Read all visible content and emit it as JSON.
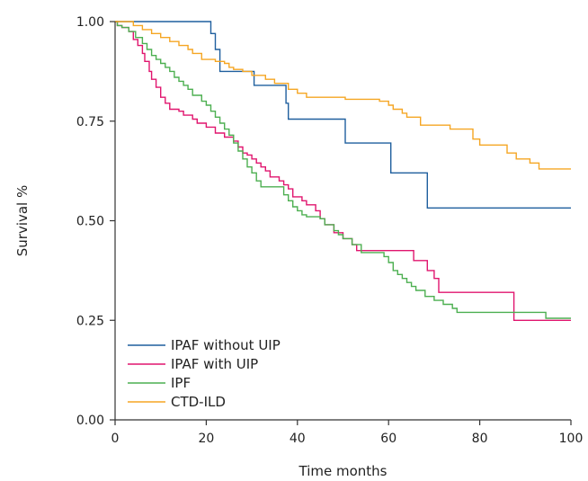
{
  "chart_data": {
    "type": "line",
    "step": true,
    "xlabel": "Time months",
    "ylabel": "Survival %",
    "xlim": [
      0,
      100
    ],
    "ylim": [
      0,
      1
    ],
    "xticks": [
      "0",
      "20",
      "40",
      "60",
      "80",
      "100"
    ],
    "yticks": [
      "0.00",
      "0.25",
      "0.50",
      "0.75",
      "1.00"
    ],
    "grid": false,
    "legend_position": "bottom-left",
    "series": [
      {
        "name": "IPAF without UIP",
        "color": "#1f5f9e",
        "points": [
          [
            0,
            1.0
          ],
          [
            20,
            1.0
          ],
          [
            21,
            0.97
          ],
          [
            22,
            0.93
          ],
          [
            23,
            0.875
          ],
          [
            30,
            0.875
          ],
          [
            30.5,
            0.84
          ],
          [
            37,
            0.84
          ],
          [
            37.5,
            0.795
          ],
          [
            38,
            0.755
          ],
          [
            50,
            0.755
          ],
          [
            50.5,
            0.695
          ],
          [
            60,
            0.695
          ],
          [
            60.5,
            0.62
          ],
          [
            68,
            0.62
          ],
          [
            68.5,
            0.532
          ],
          [
            100,
            0.532
          ]
        ]
      },
      {
        "name": "IPAF with UIP",
        "color": "#e0156e",
        "points": [
          [
            0,
            1.0
          ],
          [
            0.5,
            0.99
          ],
          [
            1.5,
            0.985
          ],
          [
            3,
            0.975
          ],
          [
            4,
            0.955
          ],
          [
            5,
            0.94
          ],
          [
            6,
            0.92
          ],
          [
            6.5,
            0.9
          ],
          [
            7.5,
            0.875
          ],
          [
            8,
            0.855
          ],
          [
            9,
            0.835
          ],
          [
            10,
            0.81
          ],
          [
            11,
            0.795
          ],
          [
            12,
            0.78
          ],
          [
            14,
            0.775
          ],
          [
            15,
            0.765
          ],
          [
            17,
            0.755
          ],
          [
            18,
            0.745
          ],
          [
            20,
            0.735
          ],
          [
            22,
            0.72
          ],
          [
            24,
            0.71
          ],
          [
            26,
            0.7
          ],
          [
            27,
            0.685
          ],
          [
            28,
            0.67
          ],
          [
            29,
            0.665
          ],
          [
            30,
            0.655
          ],
          [
            31,
            0.645
          ],
          [
            32,
            0.635
          ],
          [
            33,
            0.625
          ],
          [
            34,
            0.61
          ],
          [
            36,
            0.6
          ],
          [
            37,
            0.59
          ],
          [
            38,
            0.58
          ],
          [
            39,
            0.56
          ],
          [
            41,
            0.55
          ],
          [
            42,
            0.54
          ],
          [
            44,
            0.525
          ],
          [
            45,
            0.505
          ],
          [
            46,
            0.49
          ],
          [
            48,
            0.47
          ],
          [
            50,
            0.455
          ],
          [
            52,
            0.44
          ],
          [
            53,
            0.425
          ],
          [
            55,
            0.425
          ],
          [
            58,
            0.425
          ],
          [
            59,
            0.425
          ],
          [
            65,
            0.425
          ],
          [
            65.5,
            0.4
          ],
          [
            68,
            0.4
          ],
          [
            68.5,
            0.375
          ],
          [
            70,
            0.355
          ],
          [
            71,
            0.32
          ],
          [
            87,
            0.32
          ],
          [
            87.5,
            0.25
          ],
          [
            100,
            0.25
          ]
        ]
      },
      {
        "name": "IPF",
        "color": "#4caf50",
        "points": [
          [
            0,
            1.0
          ],
          [
            0.5,
            0.99
          ],
          [
            1.5,
            0.985
          ],
          [
            3,
            0.975
          ],
          [
            4.5,
            0.96
          ],
          [
            6,
            0.945
          ],
          [
            7,
            0.93
          ],
          [
            8,
            0.915
          ],
          [
            9,
            0.905
          ],
          [
            10,
            0.895
          ],
          [
            11,
            0.885
          ],
          [
            12,
            0.875
          ],
          [
            13,
            0.86
          ],
          [
            14,
            0.85
          ],
          [
            15,
            0.84
          ],
          [
            16,
            0.83
          ],
          [
            17,
            0.815
          ],
          [
            19,
            0.8
          ],
          [
            20,
            0.79
          ],
          [
            21,
            0.775
          ],
          [
            22,
            0.76
          ],
          [
            23,
            0.745
          ],
          [
            24,
            0.73
          ],
          [
            25,
            0.715
          ],
          [
            26,
            0.695
          ],
          [
            27,
            0.675
          ],
          [
            28,
            0.655
          ],
          [
            29,
            0.635
          ],
          [
            30,
            0.62
          ],
          [
            31,
            0.6
          ],
          [
            32,
            0.585
          ],
          [
            36,
            0.585
          ],
          [
            37,
            0.565
          ],
          [
            38,
            0.55
          ],
          [
            39,
            0.535
          ],
          [
            40,
            0.525
          ],
          [
            41,
            0.515
          ],
          [
            42,
            0.51
          ],
          [
            45,
            0.505
          ],
          [
            46,
            0.49
          ],
          [
            48,
            0.475
          ],
          [
            49,
            0.465
          ],
          [
            50,
            0.455
          ],
          [
            52,
            0.44
          ],
          [
            54,
            0.42
          ],
          [
            58,
            0.42
          ],
          [
            59,
            0.41
          ],
          [
            60,
            0.395
          ],
          [
            61,
            0.375
          ],
          [
            62,
            0.365
          ],
          [
            63,
            0.355
          ],
          [
            64,
            0.345
          ],
          [
            65,
            0.335
          ],
          [
            66,
            0.325
          ],
          [
            68,
            0.31
          ],
          [
            70,
            0.3
          ],
          [
            72,
            0.29
          ],
          [
            74,
            0.28
          ],
          [
            75,
            0.27
          ],
          [
            94,
            0.27
          ],
          [
            94.5,
            0.255
          ],
          [
            100,
            0.255
          ]
        ]
      },
      {
        "name": "CTD-ILD",
        "color": "#f5a623",
        "points": [
          [
            0,
            1.0
          ],
          [
            3,
            1.0
          ],
          [
            4,
            0.99
          ],
          [
            6,
            0.98
          ],
          [
            8,
            0.97
          ],
          [
            10,
            0.96
          ],
          [
            12,
            0.95
          ],
          [
            14,
            0.94
          ],
          [
            16,
            0.93
          ],
          [
            17,
            0.92
          ],
          [
            19,
            0.905
          ],
          [
            22,
            0.9
          ],
          [
            24,
            0.895
          ],
          [
            25,
            0.885
          ],
          [
            26,
            0.88
          ],
          [
            28,
            0.875
          ],
          [
            30,
            0.865
          ],
          [
            33,
            0.855
          ],
          [
            35,
            0.845
          ],
          [
            38,
            0.83
          ],
          [
            40,
            0.82
          ],
          [
            42,
            0.81
          ],
          [
            50,
            0.81
          ],
          [
            50.5,
            0.805
          ],
          [
            54,
            0.805
          ],
          [
            58,
            0.8
          ],
          [
            60,
            0.79
          ],
          [
            61,
            0.78
          ],
          [
            63,
            0.77
          ],
          [
            64,
            0.76
          ],
          [
            67,
            0.74
          ],
          [
            73,
            0.74
          ],
          [
            73.5,
            0.73
          ],
          [
            78,
            0.73
          ],
          [
            78.5,
            0.705
          ],
          [
            80,
            0.69
          ],
          [
            84,
            0.69
          ],
          [
            86,
            0.67
          ],
          [
            88,
            0.655
          ],
          [
            91,
            0.645
          ],
          [
            93,
            0.63
          ],
          [
            100,
            0.63
          ]
        ]
      }
    ]
  }
}
